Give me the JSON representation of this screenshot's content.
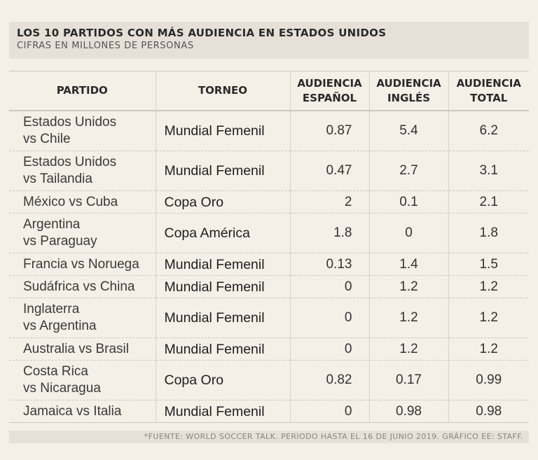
{
  "header": {
    "title": "LOS 10 PARTIDOS CON MÁS AUDIENCIA EN ESTADOS UNIDOS",
    "subtitle": "CIFRAS EN MILLONES DE PERSONAS"
  },
  "table": {
    "columns": {
      "match": "PARTIDO",
      "tournament": "TORNEO",
      "spanish_l1": "AUDIENCIA",
      "spanish_l2": "ESPAÑOL",
      "english_l1": "AUDIENCIA",
      "english_l2": "INGLÉS",
      "total_l1": "AUDIENCIA",
      "total_l2": "TOTAL"
    },
    "rows": [
      {
        "match": "Estados Unidos\nvs Chile",
        "tournament": "Mundial Femenil",
        "spanish": "0.87",
        "english": "5.4",
        "total": "6.2"
      },
      {
        "match": "Estados Unidos\nvs Tailandia",
        "tournament": "Mundial Femenil",
        "spanish": "0.47",
        "english": "2.7",
        "total": "3.1"
      },
      {
        "match": "México vs Cuba",
        "tournament": "Copa Oro",
        "spanish": "2",
        "english": "0.1",
        "total": "2.1"
      },
      {
        "match": "Argentina\nvs Paraguay",
        "tournament": "Copa América",
        "spanish": "1.8",
        "english": "0",
        "total": "1.8"
      },
      {
        "match": "Francia vs Noruega",
        "tournament": "Mundial Femenil",
        "spanish": "0.13",
        "english": "1.4",
        "total": "1.5"
      },
      {
        "match": "Sudáfrica vs China",
        "tournament": "Mundial Femenil",
        "spanish": "0",
        "english": "1.2",
        "total": "1.2"
      },
      {
        "match": "Inglaterra\nvs Argentina",
        "tournament": "Mundial Femenil",
        "spanish": "0",
        "english": "1.2",
        "total": "1.2"
      },
      {
        "match": "Australia vs Brasil",
        "tournament": "Mundial Femenil",
        "spanish": "0",
        "english": "1.2",
        "total": "1.2"
      },
      {
        "match": "Costa Rica\nvs Nicaragua",
        "tournament": "Copa Oro",
        "spanish": "0.82",
        "english": "0.17",
        "total": "0.99"
      },
      {
        "match": "Jamaica vs Italia",
        "tournament": "Mundial Femenil",
        "spanish": "0",
        "english": "0.98",
        "total": "0.98"
      }
    ]
  },
  "footer": {
    "source": "*FUENTE: WORLD SOCCER TALK.  PERIODO HASTA EL 16 DE JUNIO 2019. GRÁFICO EE: STAFF."
  }
}
